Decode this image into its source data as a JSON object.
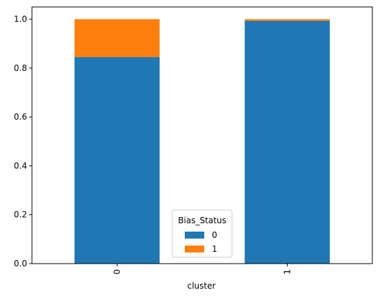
{
  "chart_data": {
    "type": "bar",
    "stacked": true,
    "categories": [
      "0",
      "1"
    ],
    "xlabel": "cluster",
    "ylabel": "",
    "ylim": [
      0,
      1.05
    ],
    "yticks": [
      0.0,
      0.2,
      0.4,
      0.6,
      0.8,
      1.0
    ],
    "ytick_labels": [
      "0.0",
      "0.2",
      "0.4",
      "0.6",
      "0.8",
      "1.0"
    ],
    "xtick_rotation": 90,
    "grid": false,
    "legend": {
      "title": "Bias_Status",
      "placement": "lower-center"
    },
    "series": [
      {
        "name": "0",
        "color": "#1f77b4",
        "values": [
          0.845,
          0.993
        ]
      },
      {
        "name": "1",
        "color": "#ff7f0e",
        "values": [
          0.155,
          0.007
        ]
      }
    ]
  }
}
